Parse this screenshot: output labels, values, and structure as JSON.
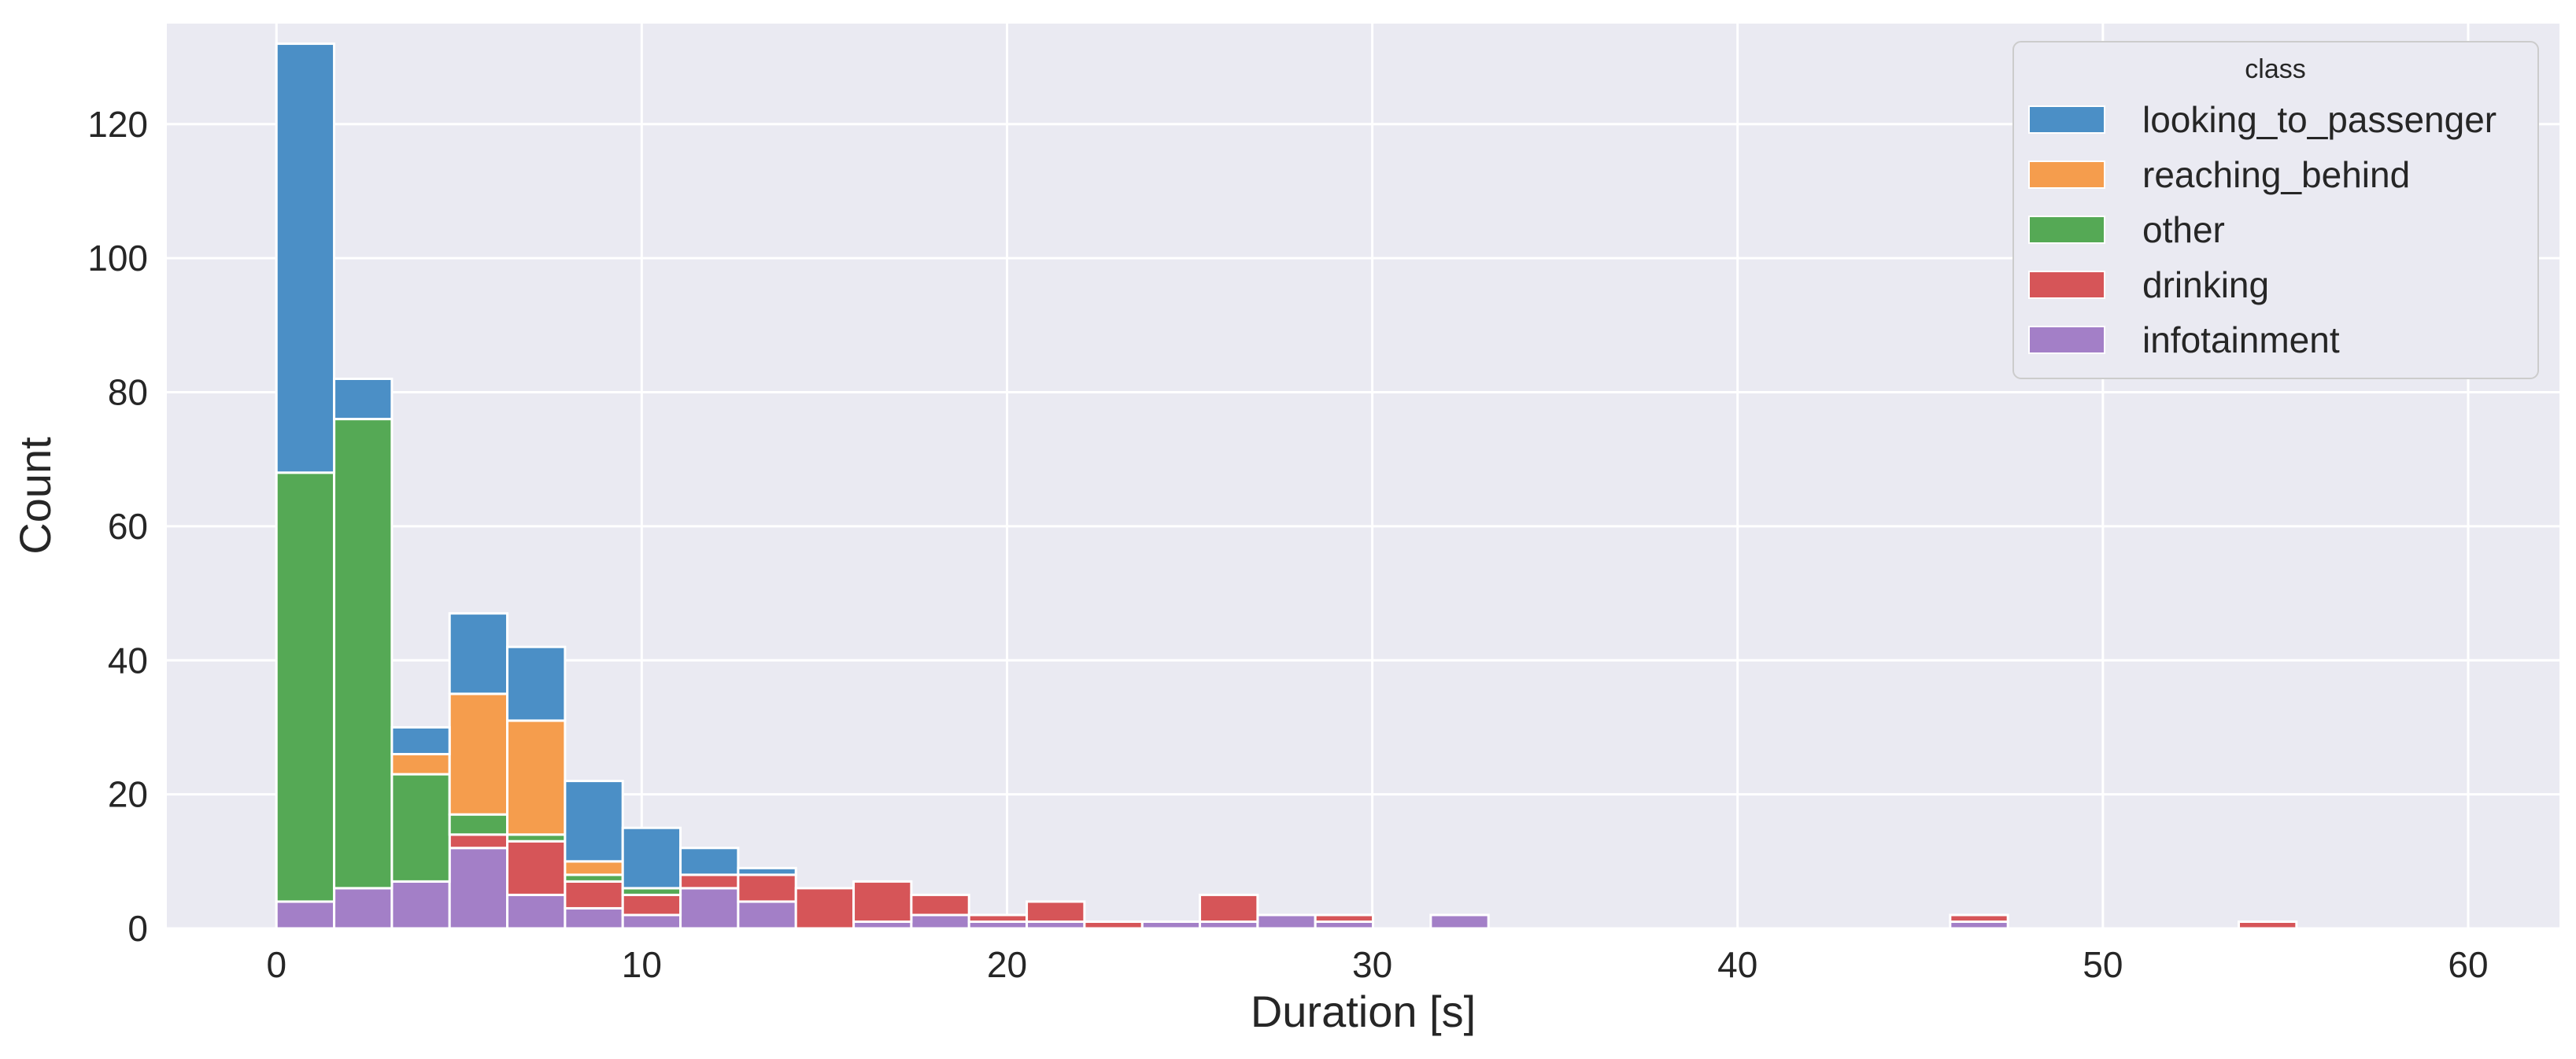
{
  "chart_data": {
    "type": "bar",
    "stacked": true,
    "xlabel": "Duration [s]",
    "ylabel": "Count",
    "xlim": [
      -3,
      62.5
    ],
    "ylim": [
      0,
      135
    ],
    "xticks": [
      0,
      10,
      20,
      30,
      40,
      50,
      60
    ],
    "yticks": [
      0,
      20,
      40,
      60,
      80,
      100,
      120
    ],
    "grid": true,
    "legend": {
      "title": "class",
      "placement": "top-right"
    },
    "bin_edges": [
      0,
      1.58,
      3.16,
      4.74,
      6.32,
      7.9,
      9.48,
      11.06,
      12.64,
      14.22,
      15.8,
      17.38,
      18.96,
      20.54,
      22.12,
      23.7,
      25.28,
      26.86,
      28.44,
      30.02,
      31.6,
      33.18,
      34.76,
      36.34,
      37.92,
      39.5,
      41.08,
      42.66,
      44.24,
      45.82,
      47.4,
      48.98,
      50.56,
      52.14,
      53.72,
      55.3,
      56.88
    ],
    "series": [
      {
        "name": "infotainment",
        "color": "#a37fc7",
        "values": [
          4,
          6,
          7,
          12,
          5,
          3,
          2,
          6,
          4,
          0,
          1,
          2,
          1,
          1,
          0,
          1,
          1,
          2,
          1,
          0,
          2,
          0,
          0,
          0,
          0,
          0,
          0,
          0,
          0,
          1,
          0,
          0,
          0,
          0,
          0,
          0
        ]
      },
      {
        "name": "drinking",
        "color": "#d65558",
        "values": [
          0,
          0,
          0,
          2,
          8,
          4,
          3,
          2,
          4,
          6,
          6,
          3,
          1,
          3,
          1,
          0,
          4,
          0,
          1,
          0,
          0,
          0,
          0,
          0,
          0,
          0,
          0,
          0,
          0,
          1,
          0,
          0,
          0,
          0,
          1,
          0
        ]
      },
      {
        "name": "other",
        "color": "#55a955",
        "values": [
          64,
          70,
          16,
          3,
          1,
          1,
          1,
          0,
          0,
          0,
          0,
          0,
          0,
          0,
          0,
          0,
          0,
          0,
          0,
          0,
          0,
          0,
          0,
          0,
          0,
          0,
          0,
          0,
          0,
          0,
          0,
          0,
          0,
          0,
          0,
          0
        ]
      },
      {
        "name": "reaching_behind",
        "color": "#f59d4d",
        "values": [
          0,
          0,
          3,
          18,
          17,
          2,
          0,
          0,
          0,
          0,
          0,
          0,
          0,
          0,
          0,
          0,
          0,
          0,
          0,
          0,
          0,
          0,
          0,
          0,
          0,
          0,
          0,
          0,
          0,
          0,
          0,
          0,
          0,
          0,
          0,
          0
        ]
      },
      {
        "name": "looking_to_passenger",
        "color": "#4b8fc6",
        "values": [
          64,
          6,
          4,
          12,
          11,
          12,
          9,
          4,
          1,
          0,
          0,
          0,
          0,
          0,
          0,
          0,
          0,
          0,
          0,
          0,
          0,
          0,
          0,
          0,
          0,
          0,
          0,
          0,
          0,
          0,
          0,
          0,
          0,
          0,
          0,
          0
        ]
      }
    ],
    "legend_order": [
      "looking_to_passenger",
      "reaching_behind",
      "other",
      "drinking",
      "infotainment"
    ]
  },
  "colors": {
    "plot_background": "#eaeaf2",
    "grid": "#ffffff",
    "bar_edge": "#ffffff"
  }
}
